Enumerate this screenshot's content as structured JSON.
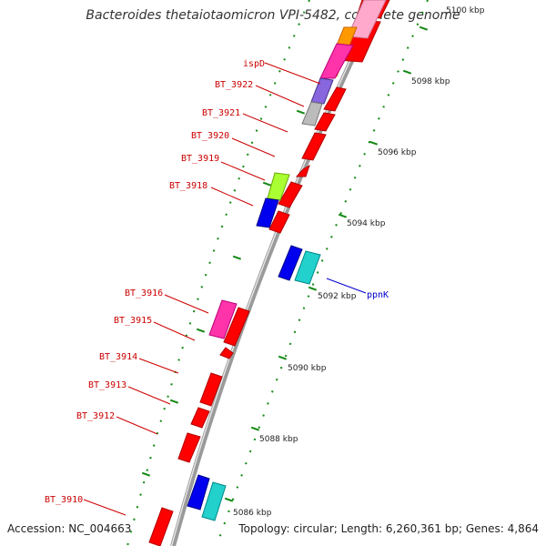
{
  "title": "Bacteroides thetaiotaomicron VPI-5482, complete genome",
  "footer": {
    "accession": "Accession: NC_004663",
    "summary": "Topology: circular; Length: 6,260,361 bp; Genes: 4,864"
  },
  "colors": {
    "gene_default": "#ff0000",
    "gene_outline": "#b00000",
    "backbone": "#888888",
    "tick_green": "#118811",
    "label_red": "#cc0000",
    "label_blue": "#0000cc"
  },
  "scale": {
    "ticks": [
      {
        "label": "5100 kbp"
      },
      {
        "label": "5098 kbp"
      },
      {
        "label": "5096 kbp"
      },
      {
        "label": "5094 kbp"
      },
      {
        "label": "5092 kbp"
      },
      {
        "label": "5090 kbp"
      },
      {
        "label": "5088 kbp"
      },
      {
        "label": "5086 kbp"
      }
    ]
  },
  "gene_labels": [
    {
      "text": "ispD",
      "color": "red"
    },
    {
      "text": "BT_3922",
      "color": "red"
    },
    {
      "text": "BT_3921",
      "color": "red"
    },
    {
      "text": "BT_3920",
      "color": "red"
    },
    {
      "text": "BT_3919",
      "color": "red"
    },
    {
      "text": "BT_3918",
      "color": "red"
    },
    {
      "text": "ppnK",
      "color": "blue"
    },
    {
      "text": "BT_3916",
      "color": "red"
    },
    {
      "text": "BT_3915",
      "color": "red"
    },
    {
      "text": "BT_3914",
      "color": "red"
    },
    {
      "text": "BT_3913",
      "color": "red"
    },
    {
      "text": "BT_3912",
      "color": "red"
    },
    {
      "text": "BT_3910",
      "color": "red"
    }
  ]
}
